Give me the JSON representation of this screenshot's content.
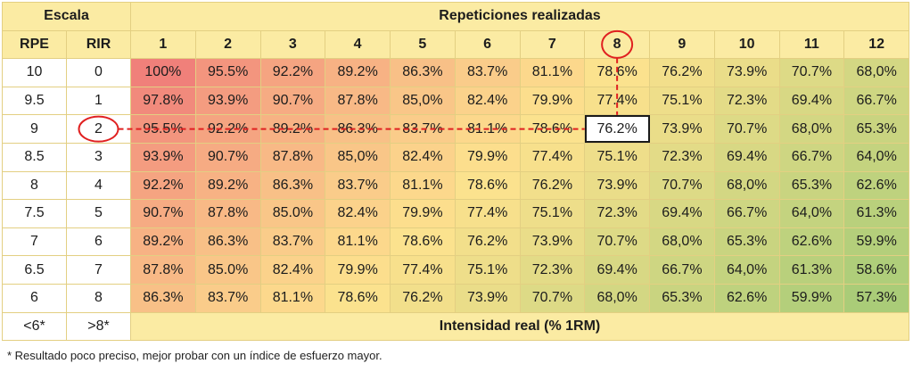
{
  "headers": {
    "escala": "Escala",
    "repeticiones": "Repeticiones realizadas",
    "rpe": "RPE",
    "rir": "RIR",
    "reps": [
      "1",
      "2",
      "3",
      "4",
      "5",
      "6",
      "7",
      "8",
      "9",
      "10",
      "11",
      "12"
    ],
    "intensidad": "Intensidad real (% 1RM)"
  },
  "rows": [
    {
      "rpe": "10",
      "rir": "0",
      "values": [
        "100%",
        "95.5%",
        "92.2%",
        "89.2%",
        "86.3%",
        "83.7%",
        "81.1%",
        "78.6%",
        "76.2%",
        "73.9%",
        "70.7%",
        "68,0%"
      ]
    },
    {
      "rpe": "9.5",
      "rir": "1",
      "values": [
        "97.8%",
        "93.9%",
        "90.7%",
        "87.8%",
        "85,0%",
        "82.4%",
        "79.9%",
        "77.4%",
        "75.1%",
        "72.3%",
        "69.4%",
        "66.7%"
      ]
    },
    {
      "rpe": "9",
      "rir": "2",
      "values": [
        "95.5%",
        "92.2%",
        "89.2%",
        "86.3%",
        "83.7%",
        "81.1%",
        "78.6%",
        "76.2%",
        "73.9%",
        "70.7%",
        "68,0%",
        "65.3%"
      ]
    },
    {
      "rpe": "8.5",
      "rir": "3",
      "values": [
        "93.9%",
        "90.7%",
        "87.8%",
        "85,0%",
        "82.4%",
        "79.9%",
        "77.4%",
        "75.1%",
        "72.3%",
        "69.4%",
        "66.7%",
        "64,0%"
      ]
    },
    {
      "rpe": "8",
      "rir": "4",
      "values": [
        "92.2%",
        "89.2%",
        "86.3%",
        "83.7%",
        "81.1%",
        "78.6%",
        "76.2%",
        "73.9%",
        "70.7%",
        "68,0%",
        "65.3%",
        "62.6%"
      ]
    },
    {
      "rpe": "7.5",
      "rir": "5",
      "values": [
        "90.7%",
        "87.8%",
        "85.0%",
        "82.4%",
        "79.9%",
        "77.4%",
        "75.1%",
        "72.3%",
        "69.4%",
        "66.7%",
        "64,0%",
        "61.3%"
      ]
    },
    {
      "rpe": "7",
      "rir": "6",
      "values": [
        "89.2%",
        "86.3%",
        "83.7%",
        "81.1%",
        "78.6%",
        "76.2%",
        "73.9%",
        "70.7%",
        "68,0%",
        "65.3%",
        "62.6%",
        "59.9%"
      ]
    },
    {
      "rpe": "6.5",
      "rir": "7",
      "values": [
        "87.8%",
        "85.0%",
        "82.4%",
        "79.9%",
        "77.4%",
        "75.1%",
        "72.3%",
        "69.4%",
        "66.7%",
        "64,0%",
        "61.3%",
        "58.6%"
      ]
    },
    {
      "rpe": "6",
      "rir": "8",
      "values": [
        "86.3%",
        "83.7%",
        "81.1%",
        "78.6%",
        "76.2%",
        "73.9%",
        "70.7%",
        "68,0%",
        "65.3%",
        "62.6%",
        "59.9%",
        "57.3%"
      ]
    }
  ],
  "last_row": {
    "rpe": "<6*",
    "rir": ">8*"
  },
  "footnote": "* Resultado poco preciso, mejor probar con un índice de esfuerzo mayor.",
  "highlight": {
    "row_index": 2,
    "col_index": 7,
    "circle_color": "#e02020",
    "box_color": "#1a1a1a"
  },
  "colors": {
    "header": "#fbeba3",
    "border": "#e3cf82",
    "heat_high": "#f0807a",
    "heat_mid": "#fde28e",
    "heat_low": "#a9cc78"
  }
}
